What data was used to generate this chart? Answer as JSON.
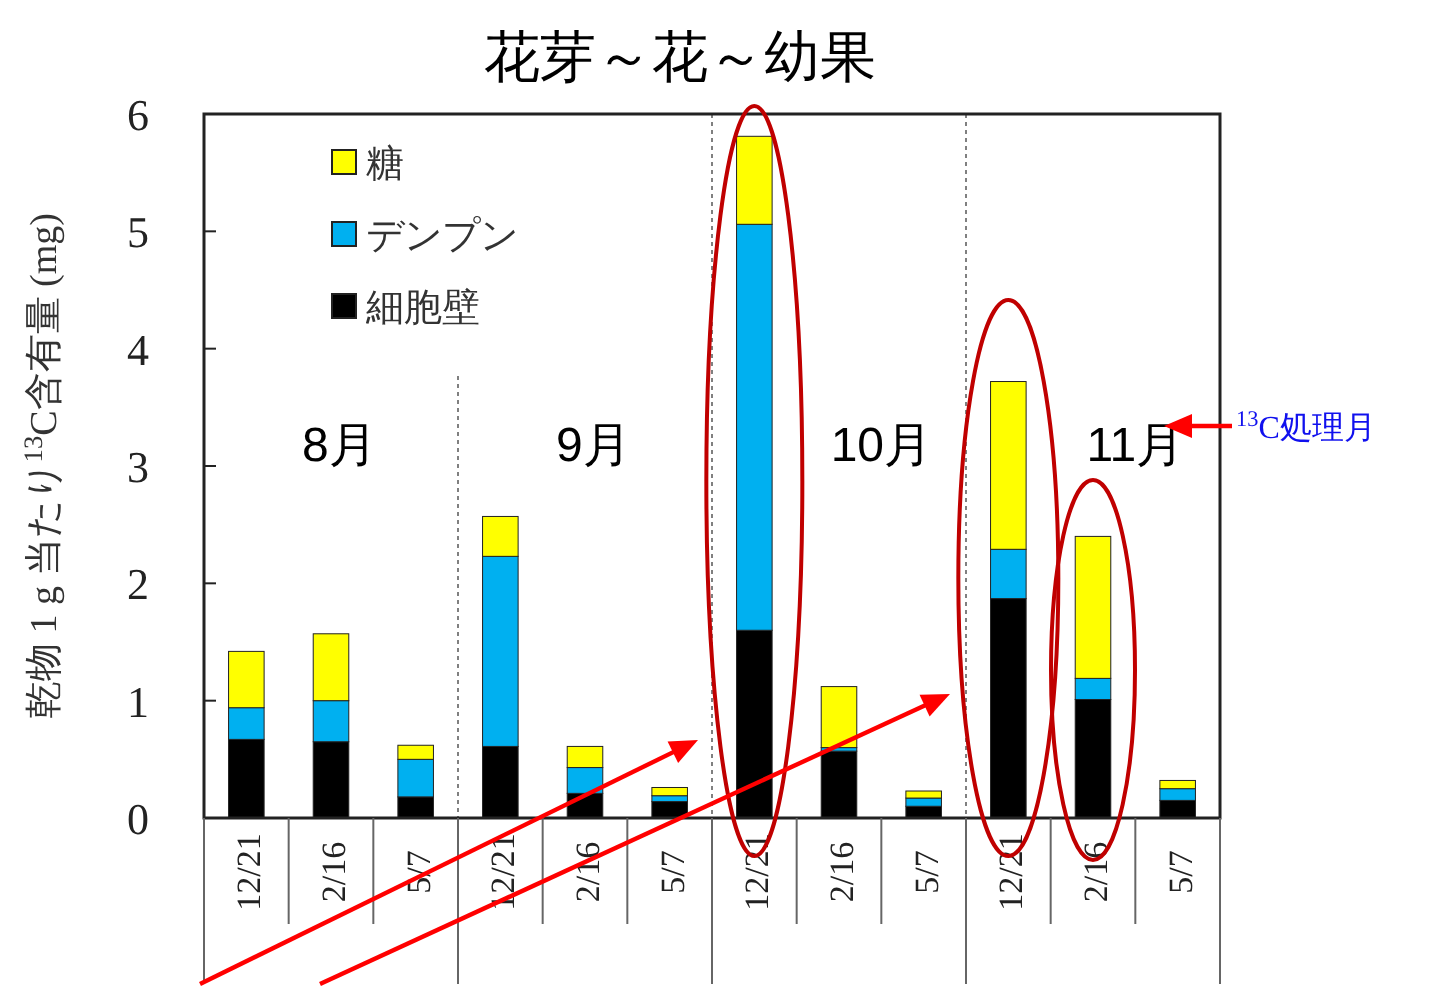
{
  "chart_data": {
    "type": "bar",
    "stacked": true,
    "title": "花芽～花～幼果",
    "ylabel": "乾物 1 g 当たり$^{13}$C含有量 (mg)",
    "categories": [
      "12/21",
      "2/16",
      "5/7",
      "12/21",
      "2/16",
      "5/7",
      "12/21",
      "2/16",
      "5/7",
      "12/21",
      "2/16",
      "5/7"
    ],
    "series": [
      {
        "name": "細胞壁",
        "color": "#000000",
        "values": [
          0.67,
          0.65,
          0.18,
          0.61,
          0.21,
          0.14,
          1.6,
          0.57,
          0.1,
          1.87,
          1.01,
          0.15
        ]
      },
      {
        "name": "デンプン",
        "color": "#00b0f0",
        "values": [
          0.27,
          0.35,
          0.32,
          1.62,
          0.22,
          0.05,
          3.46,
          0.03,
          0.07,
          0.42,
          0.18,
          0.1
        ]
      },
      {
        "name": "糖",
        "color": "#ffff00",
        "values": [
          0.48,
          0.57,
          0.12,
          0.34,
          0.18,
          0.07,
          0.75,
          0.52,
          0.06,
          1.43,
          1.21,
          0.07
        ]
      }
    ],
    "ylim": [
      0,
      6
    ],
    "yticks": [
      0,
      1,
      2,
      3,
      4,
      5,
      6
    ],
    "legend": "top left",
    "annotations": [
      "8月",
      "9月",
      "10月",
      "11月",
      "$^{13}$C処理月"
    ]
  }
}
